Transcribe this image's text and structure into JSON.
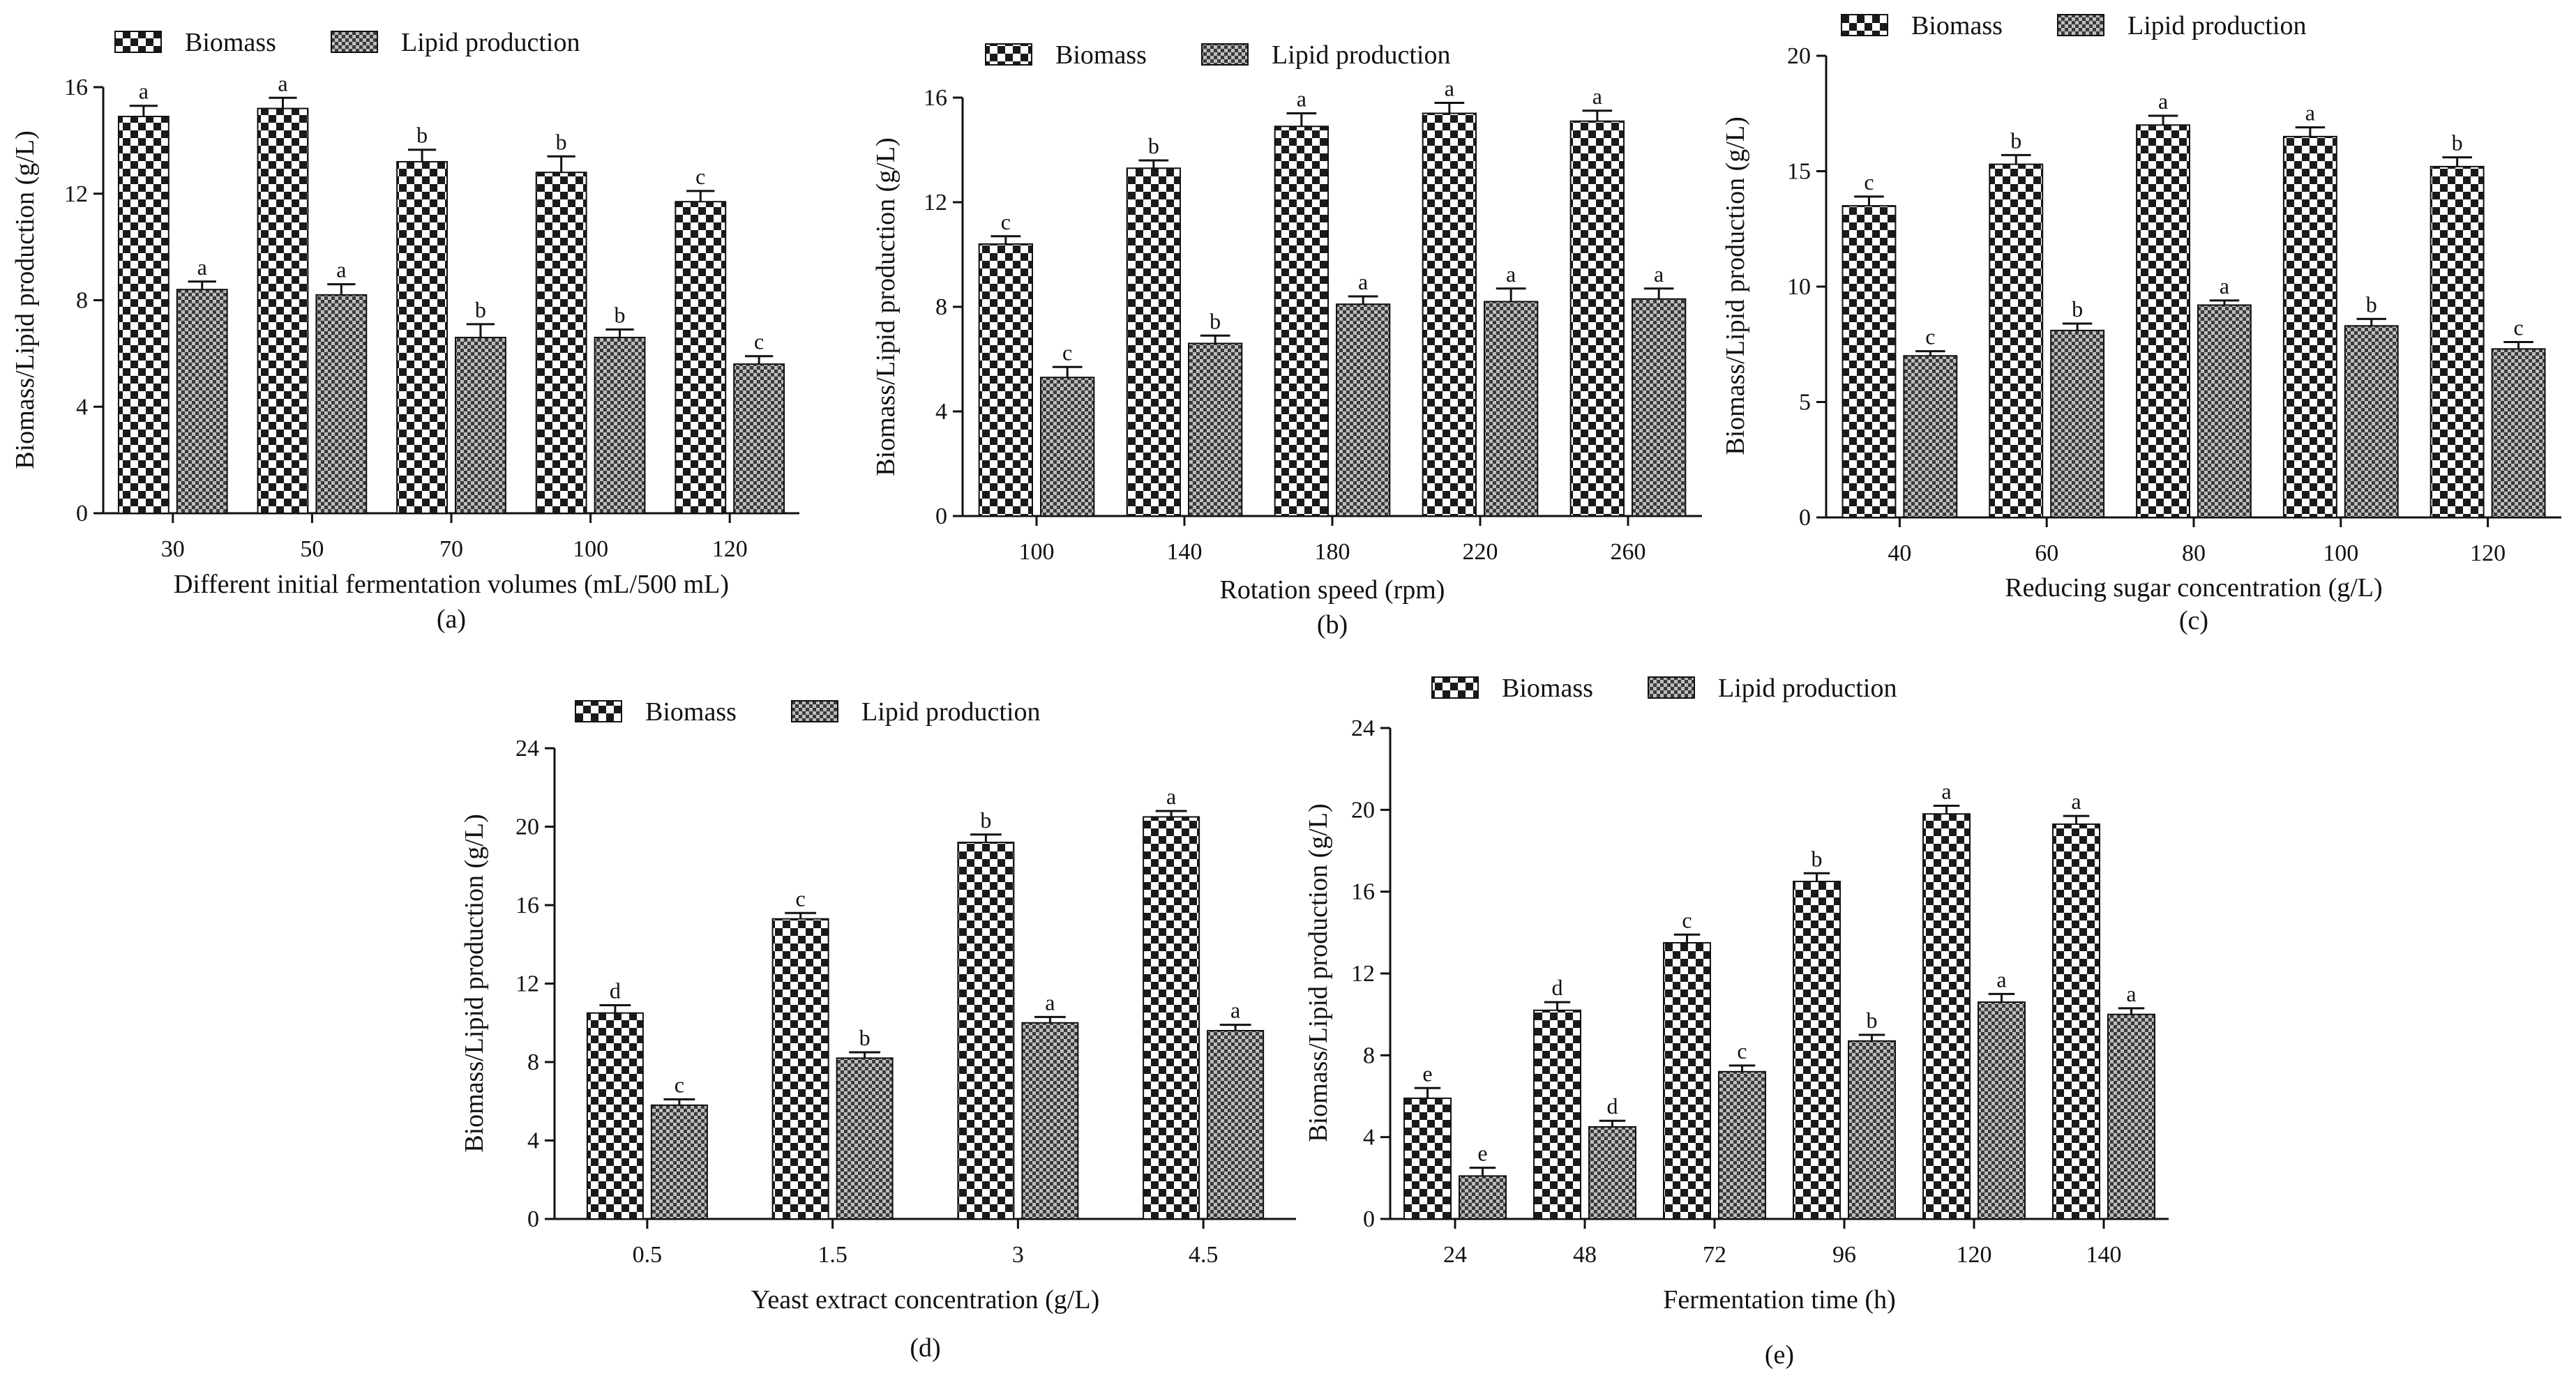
{
  "colors": {
    "axis": "#111111",
    "biomass_dark": "#1a1a1a",
    "biomass_light": "#ffffff",
    "lipid_dark": "#3a3a3a",
    "lipid_light": "#bdbdbd"
  },
  "legend": {
    "series1": "Biomass",
    "series2": "Lipid production"
  },
  "chart_data": [
    {
      "type": "bar",
      "panel": "(a)",
      "xlabel": "Different initial fermentation volumes (mL/500 mL)",
      "ylabel": "Biomass/Lipid production (g/L)",
      "ylim": [
        0,
        16
      ],
      "yticks": [
        0,
        4,
        8,
        12,
        16
      ],
      "categories": [
        "30",
        "50",
        "70",
        "100",
        "120"
      ],
      "series": [
        {
          "name": "Biomass",
          "values": [
            14.9,
            15.2,
            13.2,
            12.8,
            11.7
          ],
          "errors": [
            0.4,
            0.4,
            0.45,
            0.6,
            0.4
          ],
          "letters": [
            "a",
            "a",
            "b",
            "b",
            "c"
          ]
        },
        {
          "name": "Lipid production",
          "values": [
            8.4,
            8.2,
            6.6,
            6.6,
            5.6
          ],
          "errors": [
            0.3,
            0.4,
            0.5,
            0.3,
            0.3
          ],
          "letters": [
            "a",
            "a",
            "b",
            "b",
            "c"
          ]
        }
      ]
    },
    {
      "type": "bar",
      "panel": "(b)",
      "xlabel": "Rotation speed (rpm)",
      "ylabel": "Biomass/Lipid production (g/L)",
      "ylim": [
        0,
        16
      ],
      "yticks": [
        0,
        4,
        8,
        12,
        16
      ],
      "categories": [
        "100",
        "140",
        "180",
        "220",
        "260"
      ],
      "series": [
        {
          "name": "Biomass",
          "values": [
            10.4,
            13.3,
            14.9,
            15.4,
            15.1
          ],
          "errors": [
            0.3,
            0.3,
            0.5,
            0.4,
            0.4
          ],
          "letters": [
            "c",
            "b",
            "a",
            "a",
            "a"
          ]
        },
        {
          "name": "Lipid production",
          "values": [
            5.3,
            6.6,
            8.1,
            8.2,
            8.3
          ],
          "errors": [
            0.4,
            0.3,
            0.3,
            0.5,
            0.4
          ],
          "letters": [
            "c",
            "b",
            "a",
            "a",
            "a"
          ]
        }
      ]
    },
    {
      "type": "bar",
      "panel": "(c)",
      "xlabel": "Reducing sugar concentration (g/L)",
      "ylabel": "Biomass/Lipid production (g/L)",
      "ylim": [
        0,
        20
      ],
      "yticks": [
        0,
        5,
        10,
        15,
        20
      ],
      "categories": [
        "40",
        "60",
        "80",
        "100",
        "120"
      ],
      "series": [
        {
          "name": "Biomass",
          "values": [
            13.5,
            15.3,
            17.0,
            16.5,
            15.2
          ],
          "errors": [
            0.4,
            0.4,
            0.4,
            0.4,
            0.4
          ],
          "letters": [
            "c",
            "b",
            "a",
            "a",
            "b"
          ]
        },
        {
          "name": "Lipid production",
          "values": [
            7.0,
            8.1,
            9.2,
            8.3,
            7.3
          ],
          "errors": [
            0.2,
            0.3,
            0.2,
            0.3,
            0.3
          ],
          "letters": [
            "c",
            "b",
            "a",
            "b",
            "c"
          ]
        }
      ]
    },
    {
      "type": "bar",
      "panel": "(d)",
      "xlabel": "Yeast extract concentration  (g/L)",
      "ylabel": "Biomass/Lipid production (g/L)",
      "ylim": [
        0,
        24
      ],
      "yticks": [
        0,
        4,
        8,
        12,
        16,
        20,
        24
      ],
      "categories": [
        "0.5",
        "1.5",
        "3",
        "4.5"
      ],
      "series": [
        {
          "name": "Biomass",
          "values": [
            10.5,
            15.3,
            19.2,
            20.5
          ],
          "errors": [
            0.4,
            0.3,
            0.4,
            0.3
          ],
          "letters": [
            "d",
            "c",
            "b",
            "a"
          ]
        },
        {
          "name": "Lipid production",
          "values": [
            5.8,
            8.2,
            10.0,
            9.6
          ],
          "errors": [
            0.3,
            0.3,
            0.3,
            0.3
          ],
          "letters": [
            "c",
            "b",
            "a",
            "a"
          ]
        }
      ]
    },
    {
      "type": "bar",
      "panel": "(e)",
      "xlabel": "Fermentation time  (h)",
      "ylabel": "Biomass/Lipid production (g/L)",
      "ylim": [
        0,
        24
      ],
      "yticks": [
        0,
        4,
        8,
        12,
        16,
        20,
        24
      ],
      "categories": [
        "24",
        "48",
        "72",
        "96",
        "120",
        "140"
      ],
      "series": [
        {
          "name": "Biomass",
          "values": [
            5.9,
            10.2,
            13.5,
            16.5,
            19.8,
            19.3
          ],
          "errors": [
            0.5,
            0.4,
            0.4,
            0.4,
            0.4,
            0.4
          ],
          "letters": [
            "e",
            "d",
            "c",
            "b",
            "a",
            "a"
          ]
        },
        {
          "name": "Lipid production",
          "values": [
            2.1,
            4.5,
            7.2,
            8.7,
            10.6,
            10.0
          ],
          "errors": [
            0.4,
            0.3,
            0.3,
            0.3,
            0.4,
            0.3
          ],
          "letters": [
            "e",
            "d",
            "c",
            "b",
            "a",
            "a"
          ]
        }
      ]
    }
  ]
}
